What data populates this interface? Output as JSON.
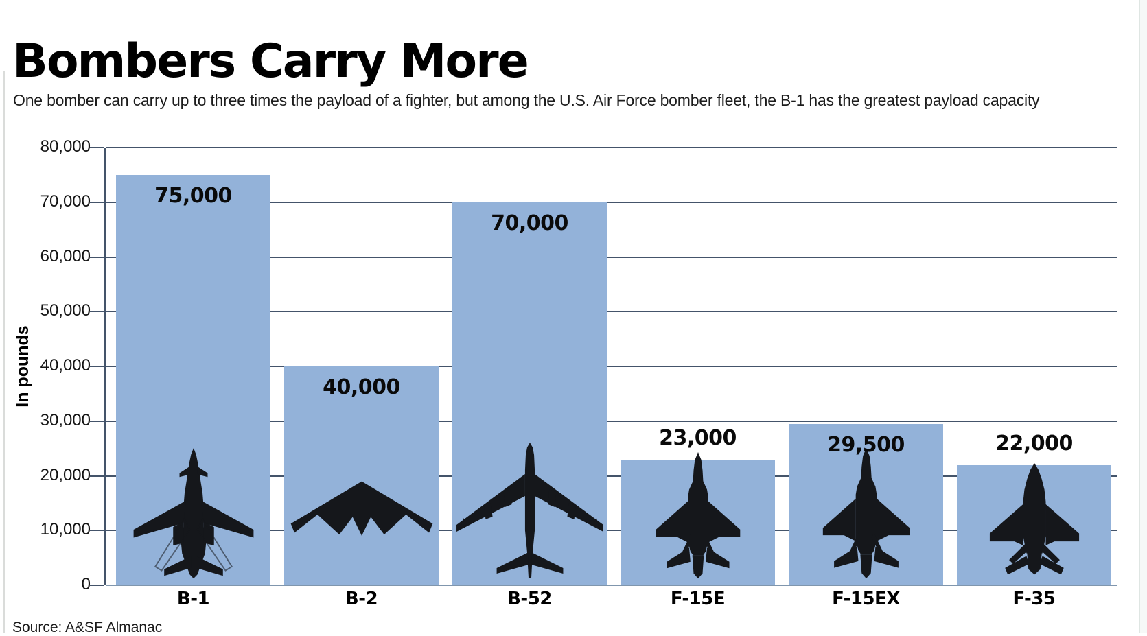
{
  "header": {
    "title": "Bombers Carry More",
    "subtitle": "One bomber can carry up to three times the payload of a fighter, but among the U.S. Air Force bomber fleet, the B-1 has the greatest payload capacity"
  },
  "chart_data": {
    "type": "bar",
    "title": "Bombers Carry More",
    "categories": [
      "B-1",
      "B-2",
      "B-52",
      "F-15E",
      "F-15EX",
      "F-35"
    ],
    "values": [
      75000,
      40000,
      70000,
      23000,
      29500,
      22000
    ],
    "value_labels": [
      "75,000",
      "40,000",
      "70,000",
      "23,000",
      "29,500",
      "22,000"
    ],
    "value_label_placement": [
      "inside",
      "inside",
      "inside",
      "outside",
      "inside",
      "outside"
    ],
    "aircraft_icons": [
      "b-1-silhouette-icon",
      "b-2-silhouette-icon",
      "b-52-silhouette-icon",
      "f-15e-silhouette-icon",
      "f-15ex-silhouette-icon",
      "f-35-silhouette-icon"
    ],
    "xlabel": "",
    "ylabel": "In pounds",
    "ylim": [
      0,
      80000
    ],
    "ytick_step": 10000,
    "ytick_labels": [
      "0",
      "10,000",
      "20,000",
      "30,000",
      "40,000",
      "50,000",
      "60,000",
      "70,000",
      "80,000"
    ],
    "grid": true,
    "legend": "none",
    "colors": {
      "bar_fill": "#93b2d9",
      "gridline": "#44546a",
      "axis_line": "#44546a",
      "baseline": "#8096ad",
      "value_label": "#0a0a0a",
      "silhouette": "#15171b"
    }
  },
  "footer": {
    "source": "Source: A&SF Almanac"
  }
}
